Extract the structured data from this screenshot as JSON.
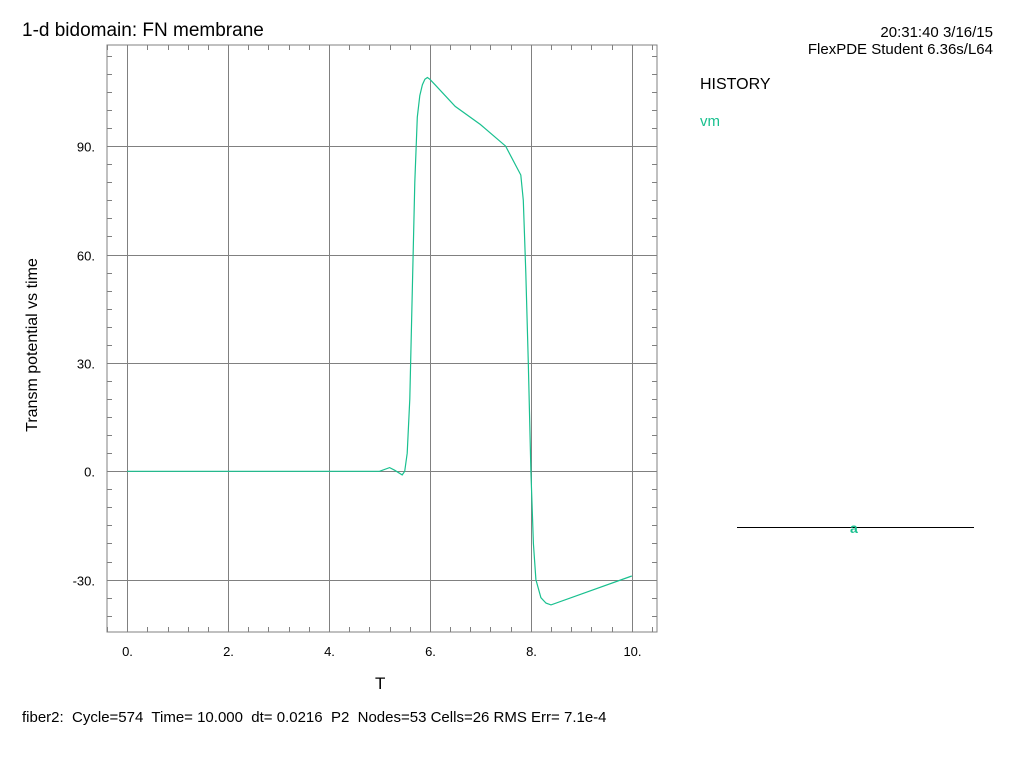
{
  "header": {
    "title": "1-d bidomain: FN membrane",
    "timestamp": "20:31:40 3/16/15",
    "software": "FlexPDE Student 6.36s/L64"
  },
  "legend": {
    "heading": "HISTORY",
    "variable": "vm",
    "marker": "a"
  },
  "footer": {
    "status": "fiber2:  Cycle=574  Time= 10.000  dt= 0.0216  P2  Nodes=53 Cells=26 RMS Err= 7.1e-4"
  },
  "colors": {
    "series": "#19c08f",
    "grid": "#808080",
    "axis": "#000000"
  },
  "chart_data": {
    "type": "line",
    "title": "1-d bidomain: FN membrane",
    "xlabel": "T",
    "ylabel": "Transm potential vs time",
    "xlim": [
      -0.4,
      10.5
    ],
    "ylim": [
      -44.5,
      118
    ],
    "x_ticks": [
      0,
      2,
      4,
      6,
      8,
      10
    ],
    "x_tick_labels": [
      "0.",
      "2.",
      "4.",
      "6.",
      "8.",
      "10."
    ],
    "y_ticks": [
      -30,
      0,
      30,
      60,
      90
    ],
    "y_tick_labels": [
      "-30.",
      "0.",
      "30.",
      "60.",
      "90."
    ],
    "grid": true,
    "series": [
      {
        "name": "vm",
        "x": [
          0,
          4.8,
          5.0,
          5.2,
          5.3,
          5.45,
          5.5,
          5.55,
          5.6,
          5.65,
          5.7,
          5.75,
          5.8,
          5.85,
          5.9,
          5.95,
          6.0,
          6.1,
          6.5,
          7.0,
          7.5,
          7.8,
          7.85,
          7.9,
          7.95,
          8.0,
          8.05,
          8.1,
          8.2,
          8.3,
          8.4,
          9.0,
          10.0
        ],
        "y": [
          0,
          0,
          0,
          1,
          0.3,
          -1,
          0,
          5,
          20,
          50,
          80,
          98,
          104,
          107,
          108.5,
          109,
          108.5,
          107,
          101,
          96,
          90,
          82,
          75,
          55,
          30,
          0,
          -20,
          -30,
          -35,
          -36.5,
          -37,
          -34,
          -29
        ]
      }
    ]
  }
}
